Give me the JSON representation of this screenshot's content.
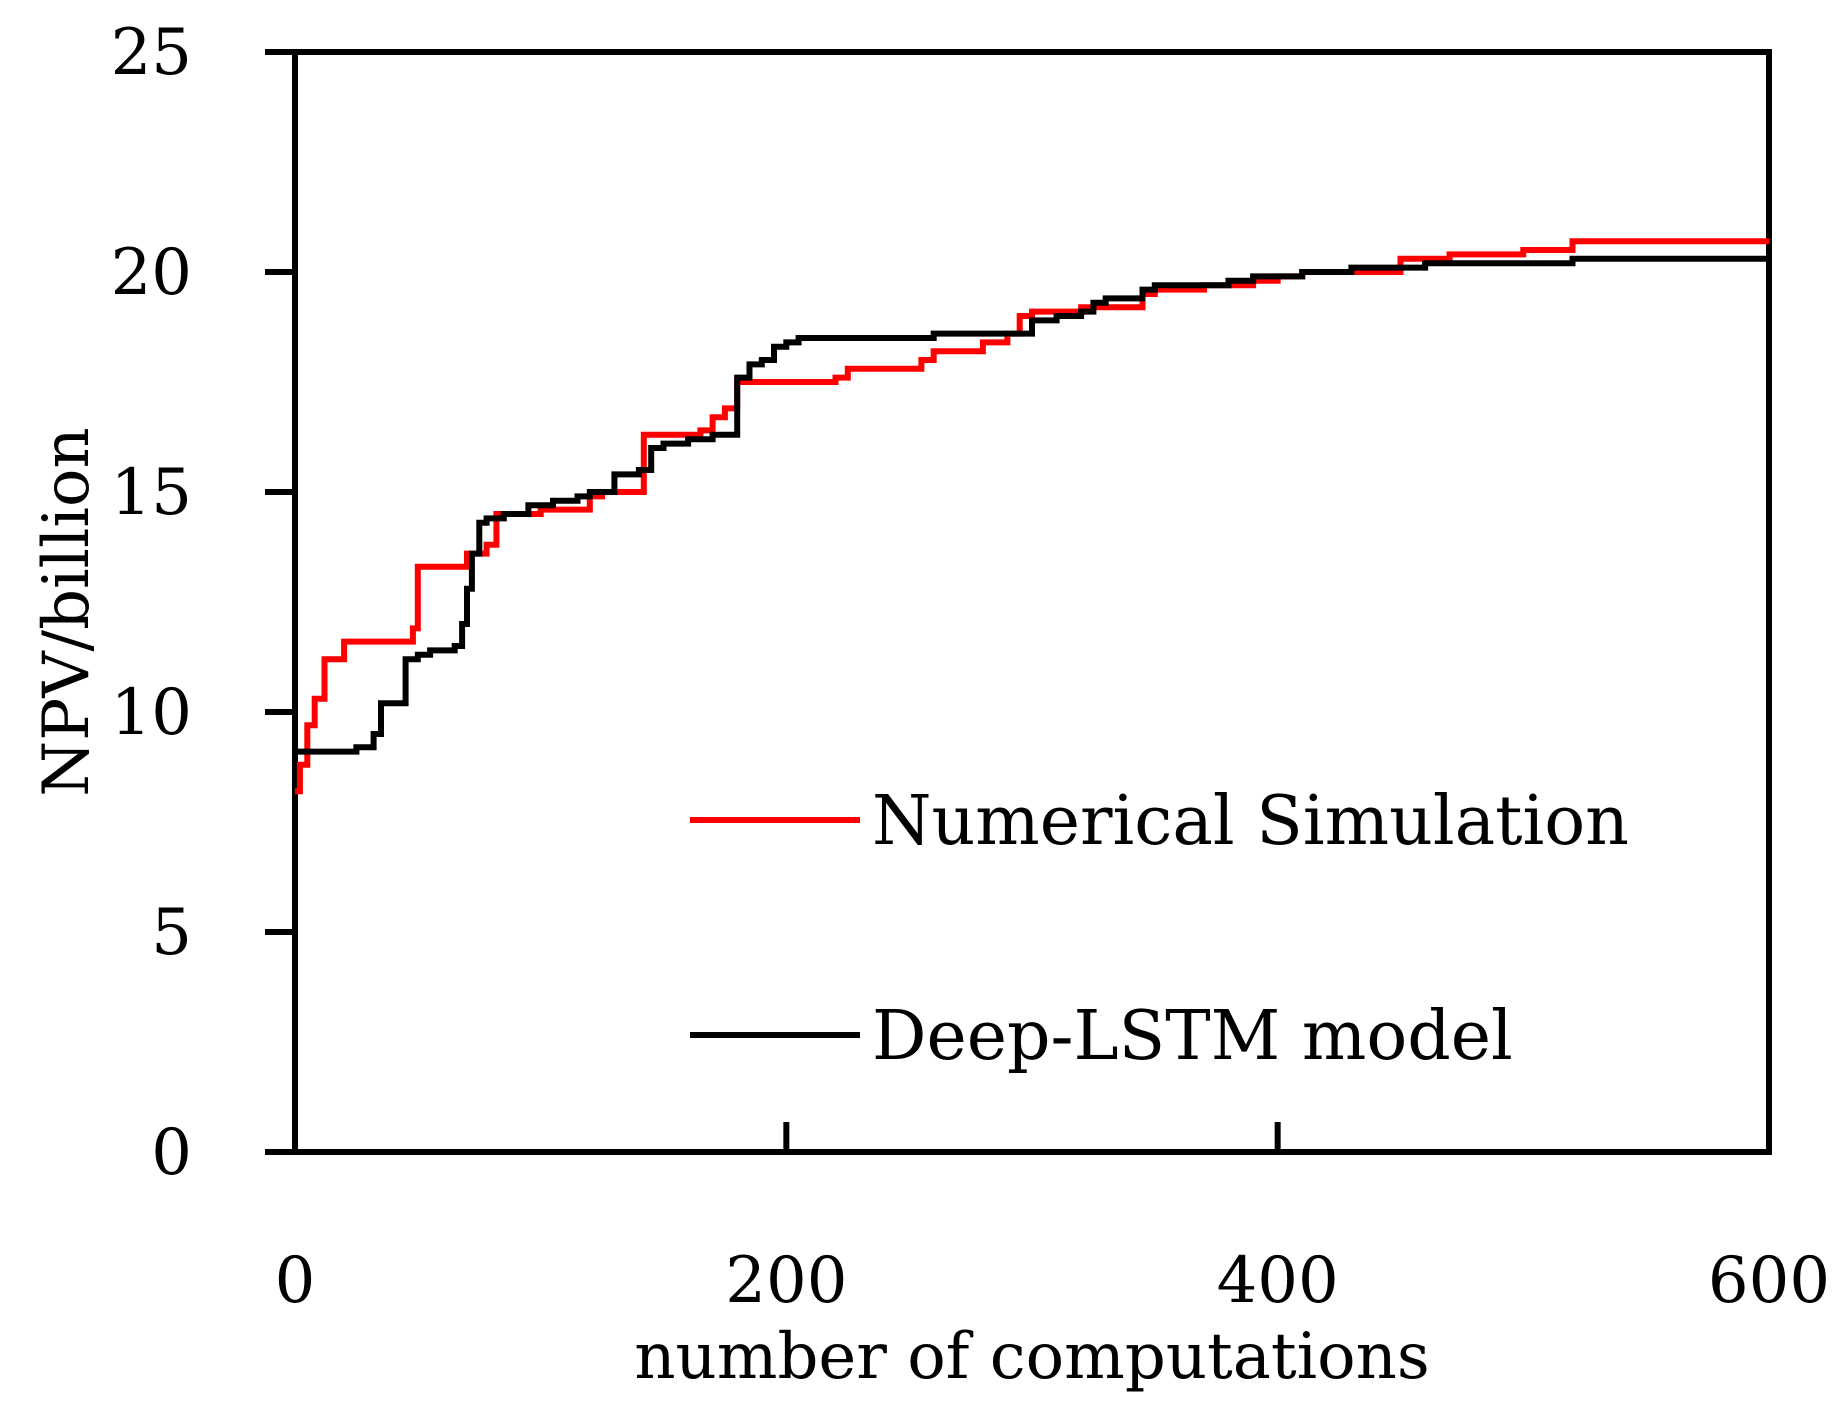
{
  "chart_data": {
    "type": "line",
    "title": "",
    "xlabel": "number of computations",
    "ylabel": "NPV/billion",
    "xlim": [
      0,
      600
    ],
    "ylim": [
      0,
      25
    ],
    "xticks": [
      0,
      200,
      400,
      600
    ],
    "yticks": [
      0,
      5,
      10,
      15,
      20,
      25
    ],
    "grid": false,
    "legend_position": "bottom-right",
    "series": [
      {
        "name": "Numerical Simulation",
        "color": "#ff0000",
        "step": true,
        "x": [
          0,
          2,
          5,
          8,
          12,
          20,
          35,
          45,
          48,
          50,
          60,
          70,
          75,
          78,
          82,
          85,
          90,
          100,
          110,
          120,
          125,
          130,
          135,
          142,
          145,
          150,
          155,
          165,
          170,
          175,
          180,
          185,
          190,
          200,
          210,
          220,
          225,
          240,
          255,
          260,
          270,
          280,
          290,
          295,
          300,
          310,
          320,
          330,
          340,
          345,
          350,
          360,
          370,
          380,
          390,
          400,
          410,
          420,
          430,
          440,
          450,
          455,
          470,
          480,
          490,
          500,
          510,
          520,
          540,
          560,
          580,
          600
        ],
        "y": [
          8.2,
          8.8,
          9.7,
          10.3,
          11.2,
          11.6,
          11.6,
          11.6,
          11.9,
          13.3,
          13.3,
          13.6,
          13.6,
          13.8,
          14.5,
          14.5,
          14.5,
          14.6,
          14.6,
          14.9,
          15.0,
          15.0,
          15.0,
          16.3,
          16.3,
          16.3,
          16.3,
          16.4,
          16.7,
          16.9,
          17.5,
          17.5,
          17.5,
          17.5,
          17.5,
          17.6,
          17.8,
          17.8,
          18.0,
          18.2,
          18.2,
          18.4,
          18.6,
          19.0,
          19.1,
          19.1,
          19.2,
          19.2,
          19.2,
          19.5,
          19.6,
          19.6,
          19.7,
          19.7,
          19.8,
          19.9,
          20.0,
          20.0,
          20.0,
          20.0,
          20.3,
          20.3,
          20.4,
          20.4,
          20.4,
          20.5,
          20.5,
          20.7,
          20.7,
          20.7,
          20.7,
          20.7
        ]
      },
      {
        "name": "Deep-LSTM model",
        "color": "#000000",
        "step": true,
        "x": [
          0,
          10,
          20,
          25,
          30,
          32,
          35,
          40,
          45,
          50,
          55,
          60,
          65,
          68,
          70,
          72,
          75,
          78,
          80,
          85,
          90,
          95,
          100,
          105,
          110,
          115,
          120,
          125,
          130,
          135,
          140,
          145,
          150,
          160,
          170,
          175,
          180,
          185,
          190,
          195,
          200,
          205,
          210,
          215,
          220,
          230,
          250,
          260,
          270,
          280,
          290,
          300,
          310,
          320,
          325,
          330,
          340,
          345,
          350,
          360,
          370,
          380,
          390,
          400,
          410,
          420,
          430,
          440,
          450,
          460,
          470,
          480,
          500,
          520,
          540,
          560,
          580,
          600
        ],
        "y": [
          9.1,
          9.1,
          9.1,
          9.2,
          9.2,
          9.5,
          10.2,
          10.2,
          11.2,
          11.3,
          11.4,
          11.4,
          11.5,
          12.0,
          12.8,
          13.6,
          14.3,
          14.4,
          14.4,
          14.5,
          14.5,
          14.7,
          14.7,
          14.8,
          14.8,
          14.9,
          15.0,
          15.0,
          15.4,
          15.4,
          15.5,
          16.0,
          16.1,
          16.2,
          16.3,
          16.3,
          17.6,
          17.9,
          18.0,
          18.3,
          18.4,
          18.5,
          18.5,
          18.5,
          18.5,
          18.5,
          18.5,
          18.6,
          18.6,
          18.6,
          18.6,
          18.9,
          19.0,
          19.1,
          19.3,
          19.4,
          19.4,
          19.6,
          19.7,
          19.7,
          19.7,
          19.8,
          19.9,
          19.9,
          20.0,
          20.0,
          20.1,
          20.1,
          20.1,
          20.2,
          20.2,
          20.2,
          20.2,
          20.3,
          20.3,
          20.3,
          20.3,
          20.3
        ]
      }
    ]
  }
}
